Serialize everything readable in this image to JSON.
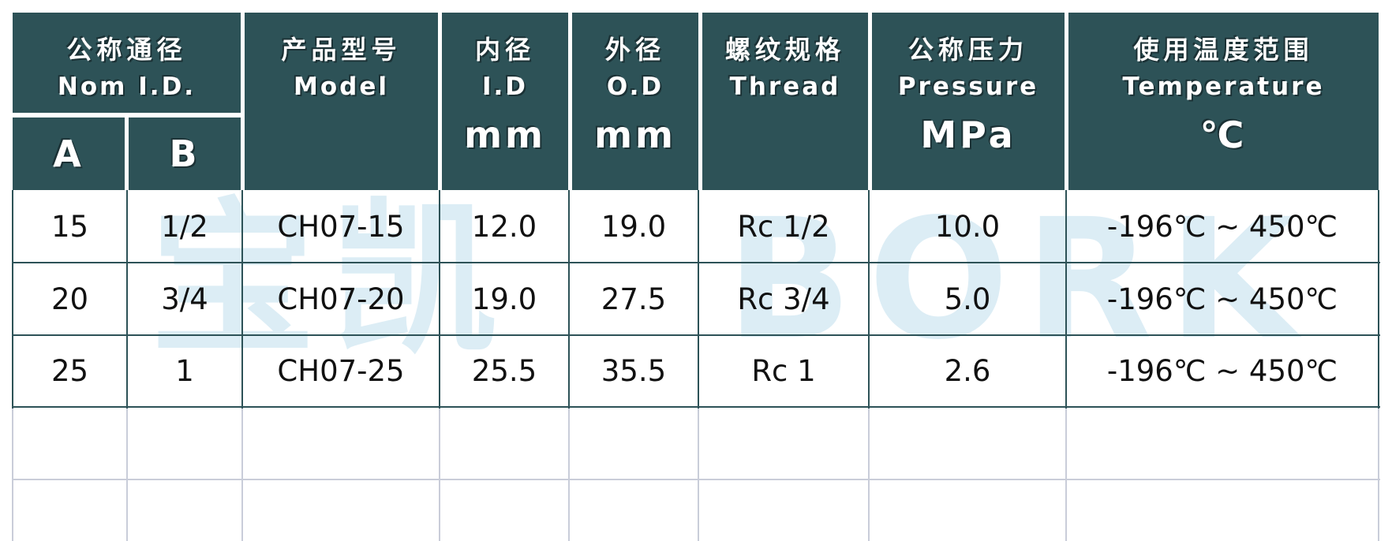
{
  "watermark": {
    "cn": "宝凯",
    "en": "BORK"
  },
  "header": {
    "nom_id": {
      "cn": "公称通径",
      "en": "Nom I.D.",
      "a": "A",
      "b": "B"
    },
    "model": {
      "cn": "产品型号",
      "en": "Model"
    },
    "id": {
      "cn": "内径",
      "en": "I.D",
      "unit": "mm"
    },
    "od": {
      "cn": "外径",
      "en": "O.D",
      "unit": "mm"
    },
    "thread": {
      "cn": "螺纹规格",
      "en": "Thread"
    },
    "pressure": {
      "cn": "公称压力",
      "en": "Pressure",
      "unit": "MPa"
    },
    "temperature": {
      "cn": "使用温度范围",
      "en": "Temperature",
      "unit": "℃"
    }
  },
  "rows": [
    [
      "15",
      "1/2",
      "CH07-15",
      "12.0",
      "19.0",
      "Rc 1/2",
      "10.0",
      "-196℃ ~ 450℃"
    ],
    [
      "20",
      "3/4",
      "CH07-20",
      "19.0",
      "27.5",
      "Rc 3/4",
      "5.0",
      "-196℃ ~ 450℃"
    ],
    [
      "25",
      "1",
      "CH07-25",
      "25.5",
      "35.5",
      "Rc 1",
      "2.6",
      "-196℃ ~ 450℃"
    ]
  ],
  "colors": {
    "header_bg": "#2d5257",
    "watermark": "#dcedf5",
    "grid_empty": "#c9cdd9"
  }
}
